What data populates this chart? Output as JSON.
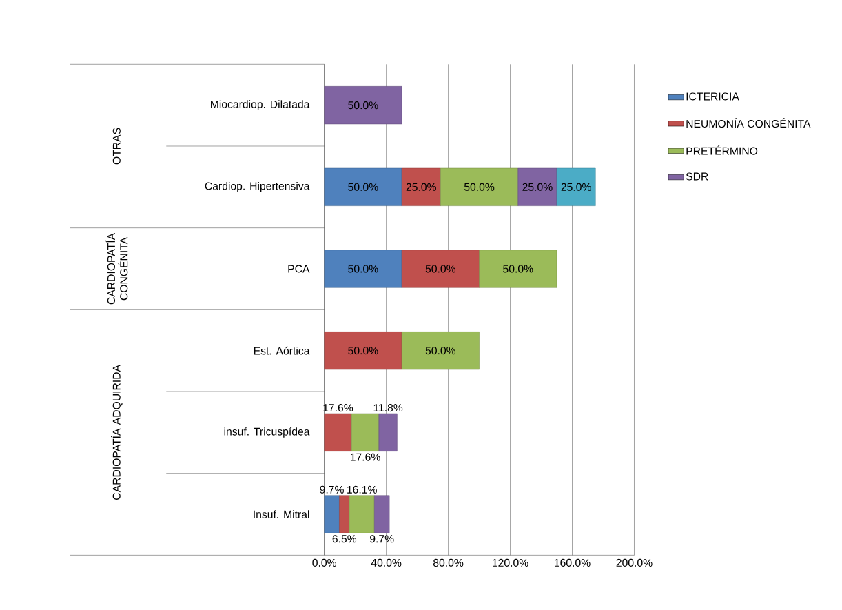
{
  "chart_data": {
    "type": "bar",
    "orientation": "horizontal",
    "stacked": true,
    "categories": [
      "Miocardiop. Dilatada",
      "Cardiop. Hipertensiva",
      "PCA",
      "Est. Aórtica",
      "insuf. Tricuspídea",
      "Insuf. Mitral"
    ],
    "series": [
      {
        "name": "ICTERICIA",
        "color": "#4f81bd",
        "values": [
          null,
          50,
          50,
          null,
          null,
          9.7
        ],
        "value_labels": [
          null,
          "50.0%",
          "50.0%",
          null,
          null,
          "9.7%"
        ]
      },
      {
        "name": "NEUMONÍA CONGÉNITA",
        "color": "#c0504d",
        "values": [
          null,
          25,
          50,
          50,
          17.6,
          6.5
        ],
        "value_labels": [
          null,
          "25.0%",
          "50.0%",
          "50.0%",
          "17.6%",
          "6.5%"
        ]
      },
      {
        "name": "PRETÉRMINO",
        "color": "#9bbb59",
        "values": [
          null,
          50,
          50,
          50,
          17.6,
          16.1
        ],
        "value_labels": [
          null,
          "50.0%",
          "50.0%",
          "50.0%",
          "17.6%",
          "16.1%"
        ]
      },
      {
        "name": "SDR",
        "color": "#8064a2",
        "values": [
          50,
          25,
          null,
          null,
          11.8,
          9.7
        ],
        "value_labels": [
          "50.0%",
          "25.0%",
          null,
          null,
          "11.8%",
          "9.7%"
        ]
      },
      {
        "color": "#4bacc6",
        "values": [
          null,
          25,
          null,
          null,
          null,
          null
        ],
        "value_labels": [
          null,
          "25.0%",
          null,
          null,
          null,
          null
        ]
      }
    ],
    "xlim": [
      0,
      200
    ],
    "xticks": [
      {
        "value": 0,
        "label": "0.0%"
      },
      {
        "value": 40,
        "label": "40.0%"
      },
      {
        "value": 80,
        "label": "80.0%"
      },
      {
        "value": 120,
        "label": "120.0%"
      },
      {
        "value": 160,
        "label": "160.0%"
      },
      {
        "value": 200,
        "label": "200.0%"
      }
    ],
    "grid": "x",
    "legend": "right",
    "annotations": [
      "OTRAS",
      "CARDIOPATÍA CONGÉNITA",
      "CARDIOPATÍA ADQUIRIDA"
    ]
  }
}
